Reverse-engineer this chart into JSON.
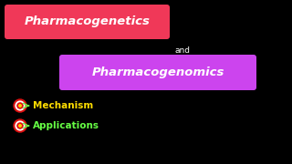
{
  "bg_color": "#000000",
  "title1": "Pharmacogenetics",
  "title1_bg": "#f03858",
  "title1_text_color": "#ffffff",
  "and_text": "and",
  "and_color": "#ffffff",
  "title2": "Pharmacogenomics",
  "title2_bg": "#cc44ee",
  "title2_text_color": "#ffffff",
  "bullet1": "Mechanism",
  "bullet1_color": "#ffdd00",
  "bullet2": "Applications",
  "bullet2_color": "#66ff44",
  "figsize": [
    3.2,
    1.8
  ],
  "dpi": 100
}
